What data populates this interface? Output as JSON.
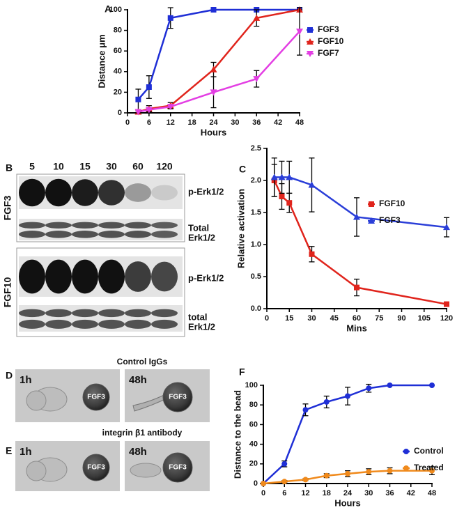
{
  "chart_data": [
    {
      "type": "line",
      "panel": "A",
      "xlabel": "Hours",
      "ylabel": "Distance μm",
      "x": [
        3,
        6,
        12,
        24,
        36,
        48
      ],
      "xlim": [
        0,
        48
      ],
      "xticks": [
        0,
        6,
        12,
        18,
        24,
        30,
        36,
        42,
        48
      ],
      "ylim": [
        0,
        100
      ],
      "yticks": [
        0,
        20,
        40,
        60,
        80,
        100
      ],
      "legend": "right",
      "series": [
        {
          "name": "FGF3",
          "color": "#1f2fd6",
          "marker": "square",
          "values": [
            13,
            25,
            92,
            100,
            100,
            100
          ],
          "errors": [
            10,
            11,
            10,
            0,
            0,
            0
          ]
        },
        {
          "name": "FGF10",
          "color": "#e0241c",
          "marker": "triangle",
          "values": [
            1,
            4,
            7,
            42,
            92,
            100
          ],
          "errors": [
            2,
            3,
            3,
            7,
            8,
            0
          ]
        },
        {
          "name": "FGF7",
          "color": "#e33ee3",
          "marker": "triangle-down",
          "values": [
            1,
            3,
            6,
            20,
            33,
            79
          ],
          "errors": [
            1,
            2,
            2,
            15,
            8,
            23
          ]
        }
      ]
    },
    {
      "type": "line",
      "panel": "C",
      "xlabel": "Mins",
      "ylabel": "Relative activation",
      "x": [
        5,
        10,
        15,
        30,
        60,
        120
      ],
      "xlim": [
        0,
        120
      ],
      "xticks": [
        0,
        15,
        30,
        45,
        60,
        75,
        90,
        105,
        120
      ],
      "ylim": [
        0,
        2.5
      ],
      "yticks": [
        {
          "value": 0,
          "label": "0.0"
        },
        0.5,
        {
          "value": 1,
          "label": "1.0"
        },
        1.5,
        {
          "value": 2,
          "label": "2.0"
        },
        2.5
      ],
      "legend": "upper right",
      "series": [
        {
          "name": "FGF10",
          "color": "#e0241c",
          "marker": "square",
          "values": [
            2.0,
            1.75,
            1.65,
            0.85,
            0.33,
            0.07
          ],
          "errors": [
            0.25,
            0.2,
            0.15,
            0.12,
            0.13,
            0.03
          ]
        },
        {
          "name": "FGF3",
          "color": "#2a3ed8",
          "marker": "triangle",
          "values": [
            2.05,
            2.05,
            2.05,
            1.93,
            1.43,
            1.27
          ],
          "errors": [
            0.3,
            0.25,
            0.25,
            0.42,
            0.3,
            0.15
          ]
        }
      ]
    },
    {
      "type": "line",
      "panel": "F",
      "xlabel": "Hours",
      "ylabel": "Distance to the bead",
      "x": [
        0,
        6,
        12,
        18,
        24,
        30,
        36,
        48
      ],
      "xlim": [
        0,
        48
      ],
      "xticks": [
        0,
        6,
        12,
        18,
        24,
        30,
        36,
        42,
        48
      ],
      "ylim": [
        0,
        100
      ],
      "yticks": [
        0,
        20,
        40,
        60,
        80,
        100
      ],
      "legend": "right",
      "series": [
        {
          "name": "Control",
          "color": "#1f2fd6",
          "marker": "circle",
          "values": [
            0,
            20,
            75,
            83,
            89,
            97,
            100,
            100
          ],
          "errors": [
            0,
            3,
            6,
            6,
            9,
            4,
            0,
            0
          ]
        },
        {
          "name": "Treated",
          "color": "#f08a1c",
          "marker": "circle",
          "values": [
            0,
            2,
            4,
            8,
            10,
            12,
            13,
            13
          ],
          "errors": [
            0,
            1,
            1,
            2,
            3,
            3,
            3,
            4
          ]
        }
      ]
    }
  ],
  "blot": {
    "panel": "B",
    "times": [
      "5",
      "10",
      "15",
      "30",
      "60",
      "120"
    ],
    "groups": [
      {
        "name": "FGF3",
        "rows": [
          [
            "p-Erk1/2"
          ],
          [
            "Total",
            "Erk1/2"
          ]
        ]
      },
      {
        "name": "FGF10",
        "rows": [
          [
            "p-Erk1/2"
          ],
          [
            "total",
            "Erk1/2"
          ]
        ]
      }
    ]
  },
  "micrographs": [
    {
      "panel": "D",
      "title": "Control IgGs",
      "frames": [
        {
          "time": "1h",
          "bead": "FGF3"
        },
        {
          "time": "48h",
          "bead": "FGF3"
        }
      ]
    },
    {
      "panel": "E",
      "title": "integrin β1 antibody",
      "frames": [
        {
          "time": "1h",
          "bead": "FGF3"
        },
        {
          "time": "48h",
          "bead": "FGF3"
        }
      ]
    }
  ]
}
